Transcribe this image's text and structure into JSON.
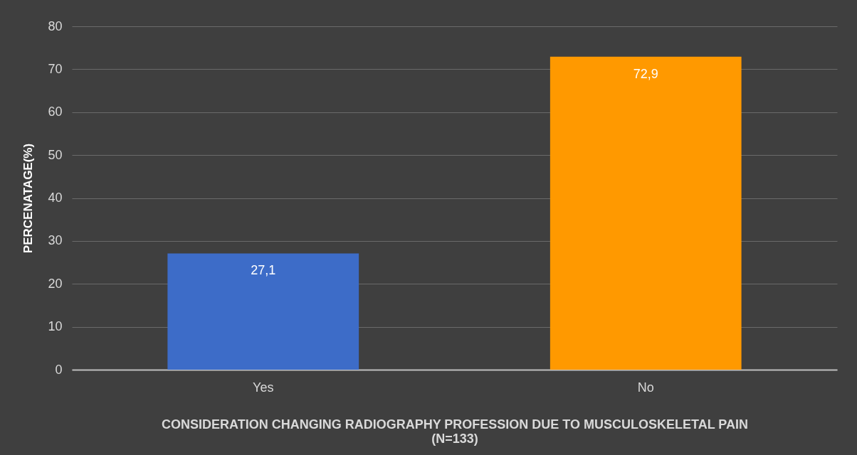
{
  "chart_data": {
    "type": "bar",
    "xlabel": "CONSIDERATION CHANGING RADIOGRAPHY PROFESSION DUE TO MUSCULOSKELETAL PAIN\n(N=133)",
    "ylabel": "PERCENATAGE(%)",
    "categories": [
      "Yes",
      "No"
    ],
    "values": [
      27.1,
      72.9
    ],
    "colors": [
      "#3d6cc8",
      "#ff9900"
    ],
    "value_labels": [
      "27,1",
      "72,9"
    ],
    "ylim": [
      0,
      80
    ],
    "yticks": [
      0,
      10,
      20,
      30,
      40,
      50,
      60,
      70,
      80
    ],
    "grid": "y"
  }
}
